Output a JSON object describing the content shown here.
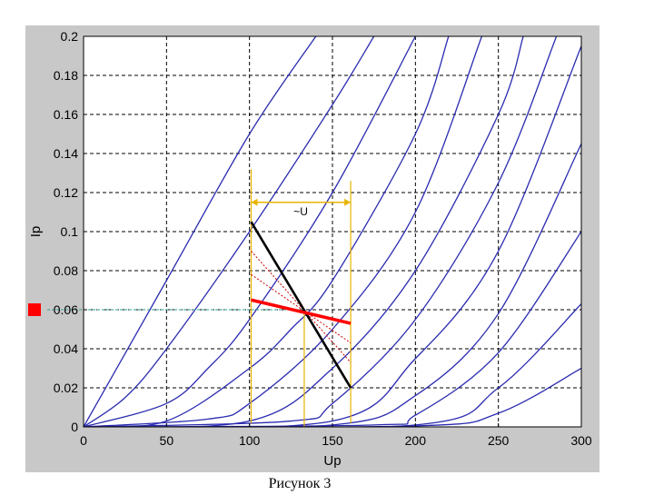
{
  "caption": "Рисунок 3",
  "chart_data": {
    "type": "line",
    "title": "",
    "xlabel": "Up",
    "ylabel": "Ip",
    "xlim": [
      0,
      300
    ],
    "ylim": [
      0,
      0.2
    ],
    "xticks": [
      "0",
      "50",
      "100",
      "150",
      "200",
      "250",
      "300"
    ],
    "yticks": [
      "0",
      "0.02",
      "0.04",
      "0.06",
      "0.08",
      "0.1",
      "0.12",
      "0.14",
      "0.16",
      "0.18",
      "0.2"
    ],
    "grid": true,
    "curve_color": "#2b2bb0",
    "curves": [
      {
        "x": [
          0,
          50,
          100,
          140
        ],
        "y": [
          0,
          0.075,
          0.15,
          0.2
        ]
      },
      {
        "x": [
          0,
          25,
          50,
          100,
          150,
          175
        ],
        "y": [
          0,
          0.015,
          0.04,
          0.1,
          0.165,
          0.2
        ]
      },
      {
        "x": [
          0,
          50,
          75,
          100,
          150,
          200
        ],
        "y": [
          0,
          0.012,
          0.03,
          0.055,
          0.12,
          0.2
        ]
      },
      {
        "x": [
          0,
          50,
          100,
          125,
          150,
          200,
          220
        ],
        "y": [
          0,
          0.003,
          0.03,
          0.05,
          0.075,
          0.15,
          0.2
        ]
      },
      {
        "x": [
          0,
          75,
          100,
          150,
          200,
          240
        ],
        "y": [
          0,
          0.004,
          0.012,
          0.05,
          0.11,
          0.2
        ]
      },
      {
        "x": [
          0,
          100,
          150,
          200,
          250,
          265
        ],
        "y": [
          0,
          0.003,
          0.03,
          0.08,
          0.16,
          0.2
        ]
      },
      {
        "x": [
          0,
          125,
          150,
          200,
          250,
          285
        ],
        "y": [
          0,
          0.003,
          0.012,
          0.055,
          0.125,
          0.2
        ]
      },
      {
        "x": [
          0,
          150,
          200,
          250,
          300
        ],
        "y": [
          0,
          0.003,
          0.035,
          0.09,
          0.195
        ]
      },
      {
        "x": [
          0,
          150,
          200,
          250,
          300
        ],
        "y": [
          0,
          0.001,
          0.016,
          0.058,
          0.145
        ]
      },
      {
        "x": [
          0,
          175,
          200,
          250,
          300
        ],
        "y": [
          0,
          0.001,
          0.006,
          0.038,
          0.1
        ]
      },
      {
        "x": [
          0,
          200,
          250,
          300
        ],
        "y": [
          0,
          0.001,
          0.02,
          0.063
        ]
      },
      {
        "x": [
          0,
          200,
          250,
          300
        ],
        "y": [
          0,
          0.0005,
          0.007,
          0.03
        ]
      }
    ],
    "load_line": {
      "color": "#000000",
      "x": [
        101,
        161
      ],
      "y": [
        0.105,
        0.02
      ]
    },
    "dynamic_line": {
      "color": "#ff0000",
      "x": [
        101,
        161
      ],
      "y": [
        0.065,
        0.053
      ]
    },
    "dotted_lines": {
      "color": "#cc0000",
      "lines": [
        {
          "x": [
            101,
            161
          ],
          "y": [
            0.09,
            0.033
          ]
        },
        {
          "x": [
            101,
            161
          ],
          "y": [
            0.078,
            0.043
          ]
        }
      ]
    },
    "operating_point": {
      "x": 133,
      "y": 0.06
    },
    "operating_guides": {
      "color": "#e8b400",
      "lines": [
        {
          "x": [
            101,
            101
          ],
          "y": [
            0.132,
            0.002
          ]
        },
        {
          "x": [
            161,
            161
          ],
          "y": [
            0.126,
            0.002
          ]
        },
        {
          "x": [
            133,
            133
          ],
          "y": [
            0.06,
            0
          ]
        }
      ]
    },
    "y_marker_line": {
      "color": "#2e9f95",
      "y": 0.06,
      "x": [
        0,
        133
      ]
    },
    "y_marker_color": "#ff0000",
    "swing_arrow": {
      "label": "~U",
      "x": [
        101,
        161
      ],
      "y": 0.115,
      "color": "#e8b400"
    }
  }
}
